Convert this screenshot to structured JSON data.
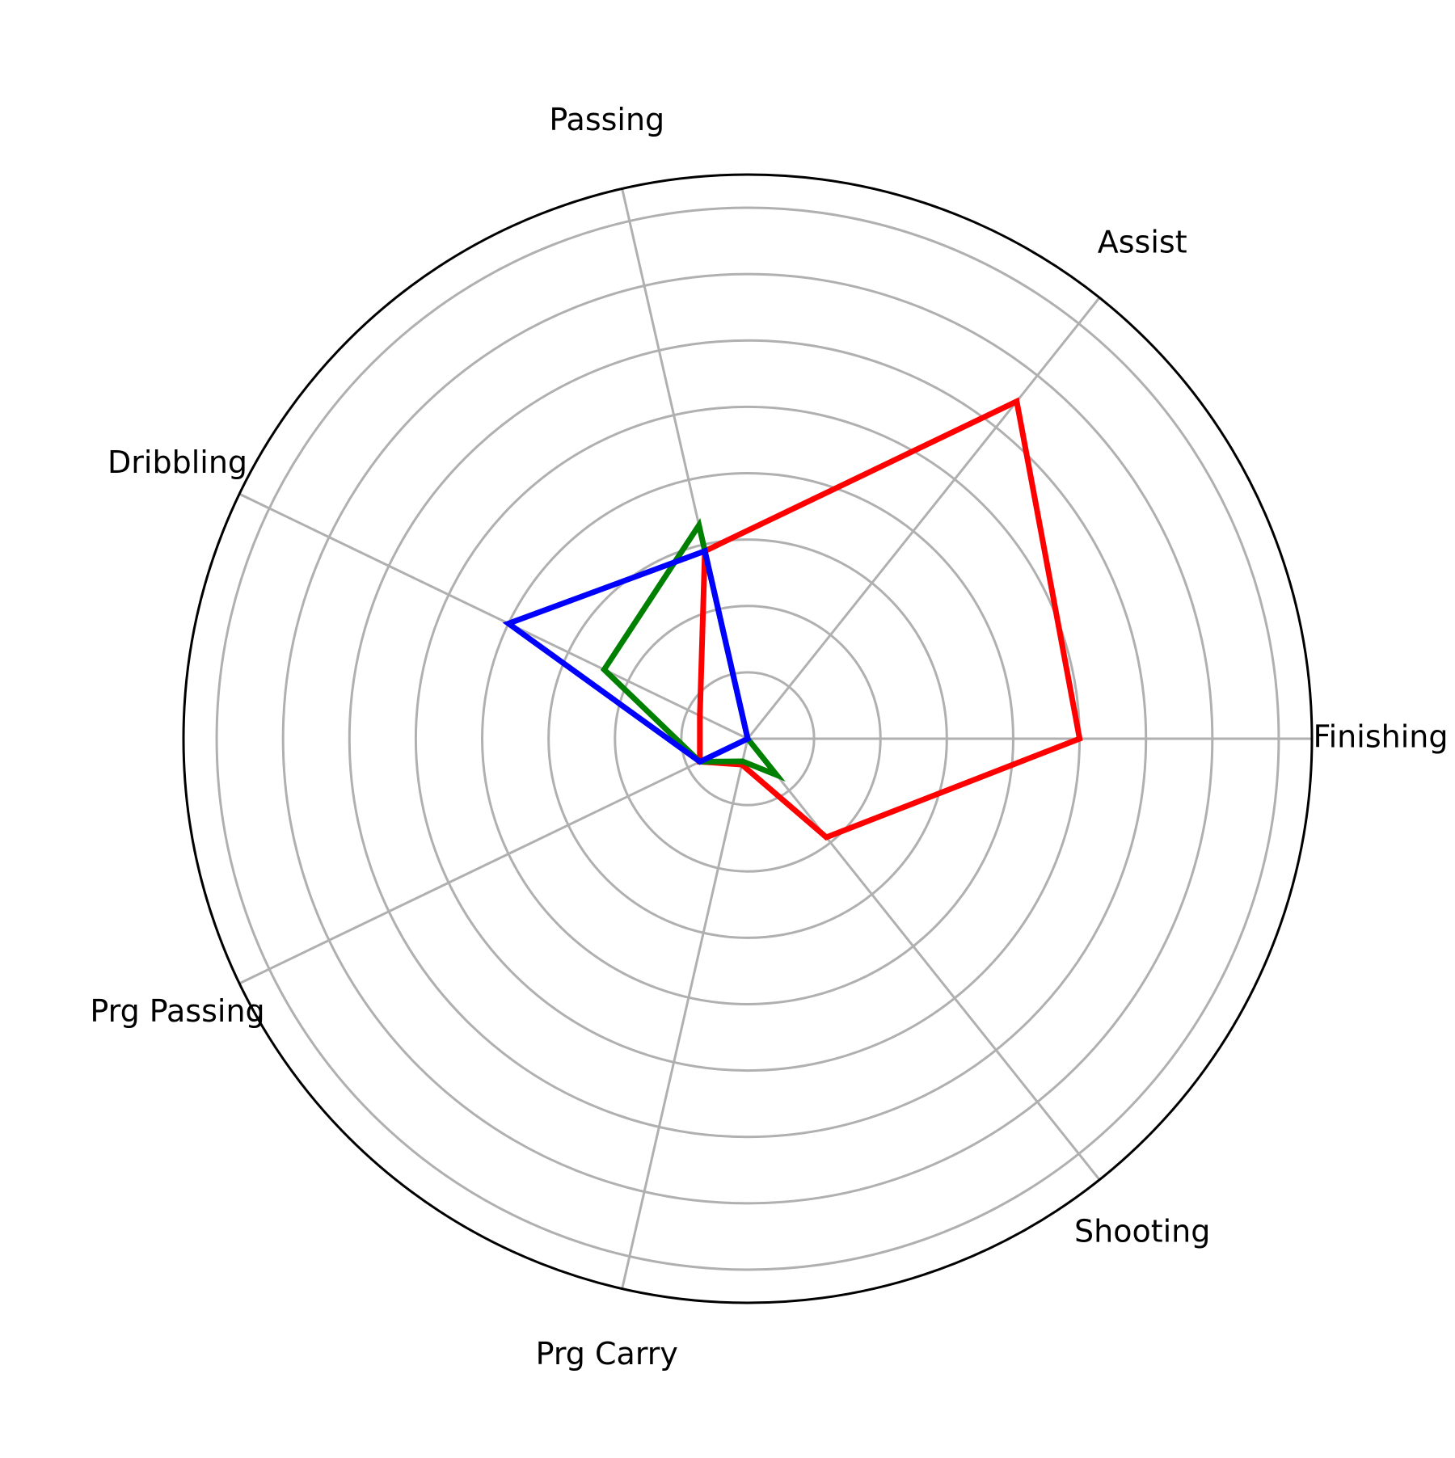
{
  "chart_data": {
    "type": "radar",
    "categories": [
      "Finishing",
      "Assist",
      "Passing",
      "Dribbling",
      "Prg Passing",
      "Prg Carry",
      "Shooting"
    ],
    "rlim": [
      0,
      8.5
    ],
    "rgrid": [
      1,
      2,
      3,
      4,
      5,
      6,
      7,
      8
    ],
    "grid": true,
    "series": [
      {
        "color": "#ff0000",
        "values": [
          5.0,
          6.5,
          2.9,
          0.8,
          0.8,
          0.4,
          1.9
        ]
      },
      {
        "color": "#008000",
        "values": [
          0.0,
          0.0,
          3.3,
          2.4,
          0.8,
          0.35,
          0.7
        ]
      },
      {
        "color": "#0000ff",
        "values": [
          0.0,
          0.0,
          2.9,
          4.0,
          0.8,
          0.0,
          0.0
        ]
      }
    ],
    "colors": {
      "grid": "#b0b0b0",
      "frame": "#000000"
    }
  }
}
